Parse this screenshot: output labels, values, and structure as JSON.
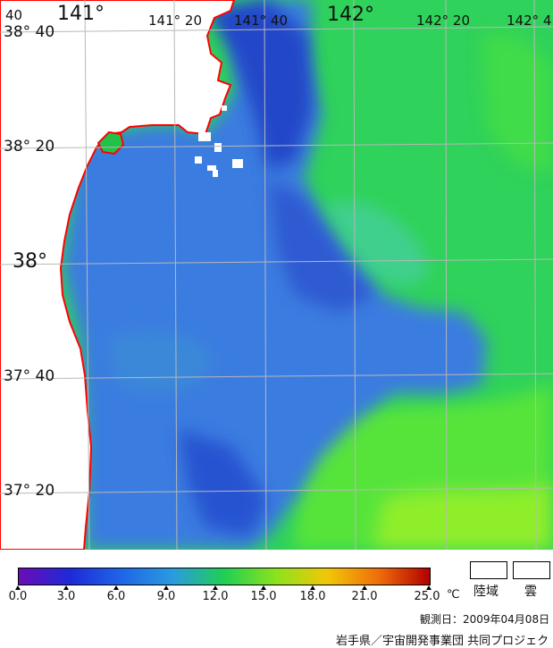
{
  "map": {
    "lon_labels": [
      "141°",
      "141° 20",
      "141° 40",
      "142°",
      "142° 20",
      "142° 4"
    ],
    "lat_labels": [
      "38° 40",
      "38° 20",
      "38°",
      "37° 40",
      "37° 20"
    ],
    "corner_fragment": "40",
    "coastline_color": "#ff0000",
    "grid_color": "#b0b0b0",
    "land_color": "#ffffff"
  },
  "legend": {
    "ticks": [
      "0.0",
      "3.0",
      "6.0",
      "9.0",
      "12.0",
      "15.0",
      "18.0",
      "21.0",
      "25.0"
    ],
    "unit": "℃",
    "land_label": "陸域",
    "cloud_label": "雲",
    "gradient_colors": [
      "#6a0db5",
      "#1e2ad8",
      "#1f66e6",
      "#2a9be0",
      "#1fcf54",
      "#8ce21d",
      "#f0c808",
      "#ef6e0b",
      "#b30000"
    ]
  },
  "footer": {
    "observation_date": "観測日：2009年04月08日",
    "credit": "岩手県／宇宙開発事業団 共同プロジェクト"
  }
}
